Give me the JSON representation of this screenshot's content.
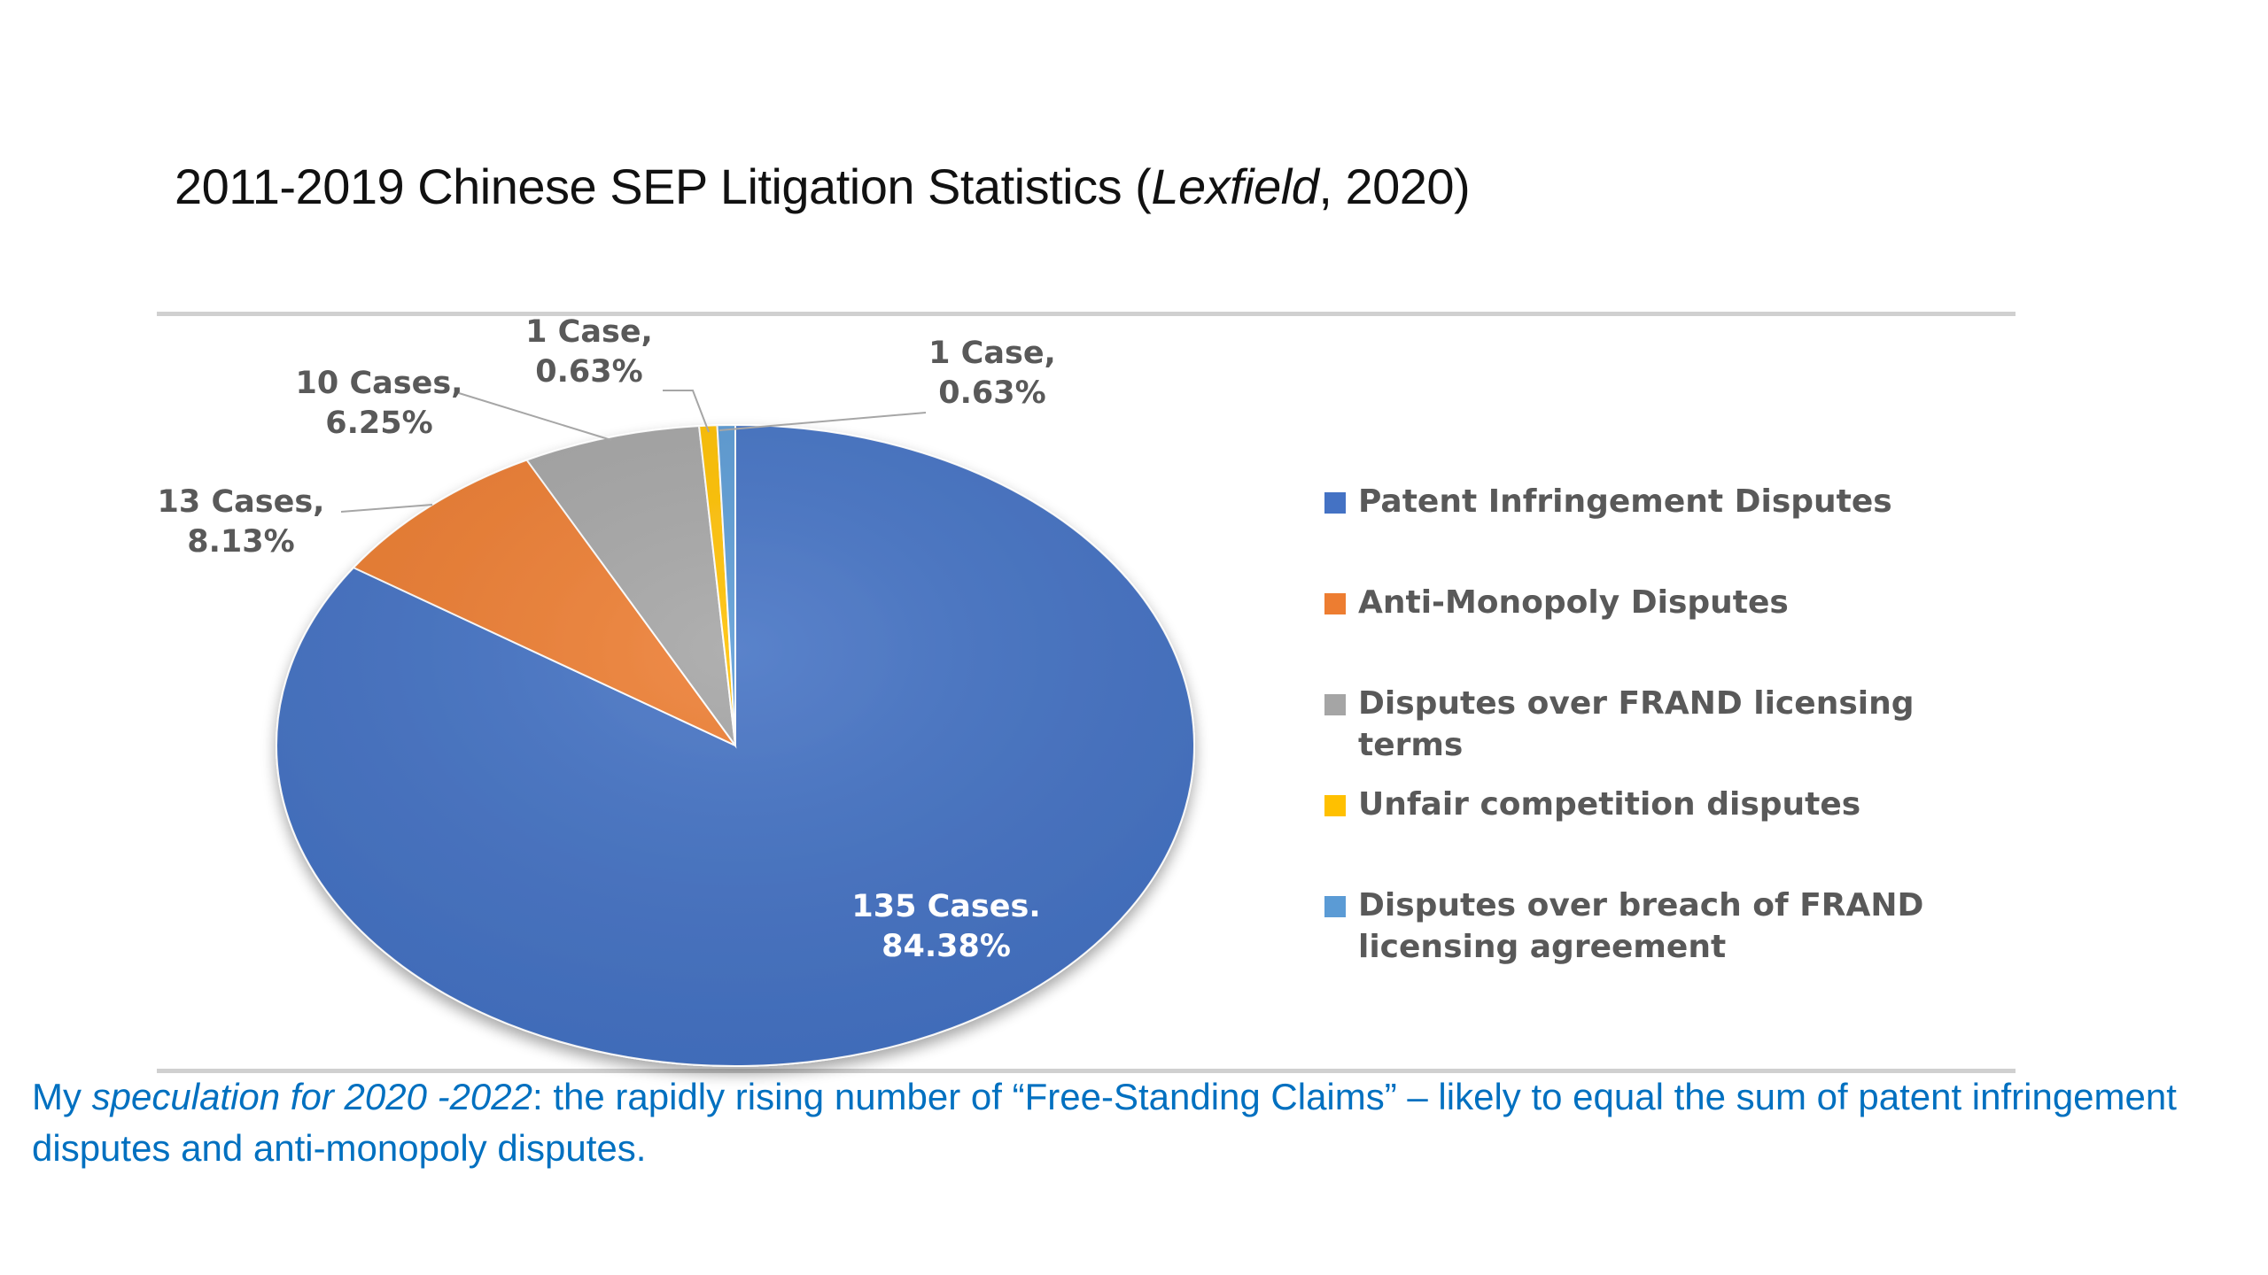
{
  "title": {
    "main": "2011-2019 Chinese SEP Litigation Statistics (",
    "source_italic": "Lexfield",
    "tail": ", 2020)"
  },
  "chart_data": {
    "type": "pie",
    "title": "",
    "start_angle_deg": 0,
    "slices": [
      {
        "name": "Patent Infringement Disputes",
        "cases": 135,
        "percent": 84.38,
        "label_line1": "135 Cases.",
        "label_line2": "84.38%",
        "color": "#4472c4"
      },
      {
        "name": "Anti-Monopoly Disputes",
        "cases": 13,
        "percent": 8.13,
        "label_line1": "13 Cases,",
        "label_line2": "8.13%",
        "color": "#ed7d31"
      },
      {
        "name": "Disputes over FRAND licensing terms",
        "cases": 10,
        "percent": 6.25,
        "label_line1": "10 Cases,",
        "label_line2": "6.25%",
        "color": "#a5a5a5"
      },
      {
        "name": "Unfair competition disputes",
        "cases": 1,
        "percent": 0.63,
        "label_line1": "1 Case,",
        "label_line2": "0.63%",
        "color": "#ffc000"
      },
      {
        "name": "Disputes over breach of FRAND licensing agreement",
        "cases": 1,
        "percent": 0.63,
        "label_line1": "1 Case,",
        "label_line2": "0.63%",
        "color": "#5b9bd5"
      }
    ],
    "legend": {
      "placement": "right",
      "entries": [
        {
          "line1": "Patent Infringement Disputes",
          "line2": ""
        },
        {
          "line1": "Anti-Monopoly Disputes",
          "line2": ""
        },
        {
          "line1": "Disputes over FRAND licensing",
          "line2": "terms"
        },
        {
          "line1": "Unfair competition disputes",
          "line2": ""
        },
        {
          "line1": "Disputes over breach of FRAND",
          "line2": "licensing agreement"
        }
      ]
    }
  },
  "caption": {
    "prefix": "My ",
    "italic": "speculation for 2020 -2022",
    "rest": ": the rapidly rising number of “Free-Standing Claims” – likely to equal the sum of patent infringement disputes and anti-monopoly disputes."
  }
}
